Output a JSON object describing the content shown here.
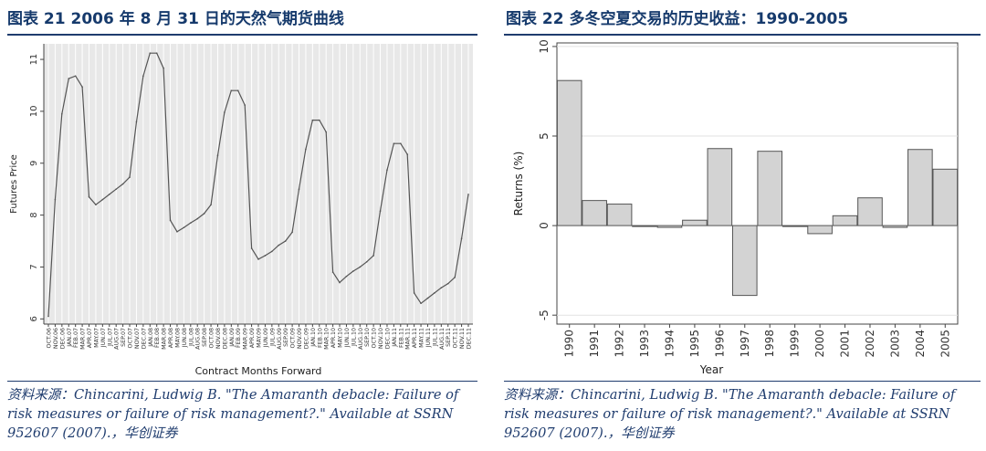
{
  "left": {
    "title": "图表 21  2006 年 8 月 31 日的天然气期货曲线",
    "source": "资料来源：Chincarini, Ludwig B. \"The Amaranth debacle: Failure of risk measures or failure of risk management?.\" Available at SSRN 952607 (2007).，华创证券"
  },
  "right": {
    "title": "图表 22  多冬空夏交易的历史收益：1990-2005",
    "source": "资料来源：Chincarini, Ludwig B. \"The Amaranth debacle: Failure of risk measures or failure of risk management?.\" Available at SSRN 952607 (2007).，华创证券"
  },
  "chart_data": [
    {
      "type": "line",
      "title": "",
      "xlabel": "Contract Months Forward",
      "ylabel": "Futures Price",
      "ylim": [
        5.9,
        11.3
      ],
      "yticks": [
        6,
        7,
        8,
        9,
        10,
        11
      ],
      "grid": "vertical",
      "colors": {
        "line": "#555555",
        "background": "#e8e8e8",
        "grid": "#ffffff"
      },
      "categories": [
        "OCT.06",
        "NOV.06",
        "DEC.06",
        "JAN.07",
        "FEB.07",
        "MAR.07",
        "APR.07",
        "MAY.07",
        "JUN.07",
        "JUL.07",
        "AUG.07",
        "SEP.07",
        "OCT.07",
        "NOV.07",
        "DEC.07",
        "JAN.08",
        "FEB.08",
        "MAR.08",
        "APR.08",
        "MAY.08",
        "JUN.08",
        "JUL.08",
        "AUG.08",
        "SEP.08",
        "OCT.08",
        "NOV.08",
        "DEC.08",
        "JAN.09",
        "FEB.09",
        "MAR.09",
        "APR.09",
        "MAY.09",
        "JUN.09",
        "JUL.09",
        "AUG.09",
        "SEP.09",
        "OCT.09",
        "NOV.09",
        "DEC.09",
        "JAN.10",
        "FEB.10",
        "MAR.10",
        "APR.10",
        "MAY.10",
        "JUN.10",
        "JUL.10",
        "AUG.10",
        "SEP.10",
        "OCT.10",
        "NOV.10",
        "DEC.10",
        "JAN.11",
        "FEB.11",
        "MAR.11",
        "APR.11",
        "MAY.11",
        "JUN.11",
        "JUL.11",
        "AUG.11",
        "SEP.11",
        "OCT.11",
        "NOV.11",
        "DEC.11"
      ],
      "series": [
        {
          "values": [
            6.05,
            8.3,
            9.95,
            10.63,
            10.68,
            10.47,
            8.35,
            8.2,
            8.3,
            8.4,
            8.5,
            8.6,
            8.73,
            9.8,
            10.68,
            11.12,
            11.12,
            10.83,
            7.9,
            7.68,
            7.76,
            7.85,
            7.93,
            8.03,
            8.2,
            9.15,
            9.98,
            10.4,
            10.4,
            10.12,
            7.36,
            7.15,
            7.22,
            7.3,
            7.42,
            7.5,
            7.67,
            8.5,
            9.27,
            9.83,
            9.83,
            9.6,
            6.9,
            6.7,
            6.82,
            6.92,
            7.0,
            7.1,
            7.22,
            8.08,
            8.87,
            9.38,
            9.38,
            9.17,
            6.5,
            6.3,
            6.4,
            6.5,
            6.6,
            6.68,
            6.8,
            7.55,
            8.4
          ]
        }
      ]
    },
    {
      "type": "bar",
      "title": "",
      "xlabel": "Year",
      "ylabel": "Returns (%)",
      "ylim": [
        -5.5,
        10.2
      ],
      "yticks": [
        -5,
        0,
        5,
        10
      ],
      "grid": "horizontal",
      "colors": {
        "bar": "#d3d3d3",
        "edge": "#555555",
        "grid": "#e2e2e2"
      },
      "categories": [
        "1990",
        "1991",
        "1992",
        "1993",
        "1994",
        "1995",
        "1996",
        "1997",
        "1998",
        "1999",
        "2000",
        "2001",
        "2002",
        "2003",
        "2004",
        "2005"
      ],
      "values": [
        8.1,
        1.4,
        1.2,
        -0.05,
        -0.1,
        0.3,
        4.3,
        -3.9,
        4.15,
        -0.05,
        -0.45,
        0.55,
        1.55,
        -0.1,
        4.25,
        3.15
      ]
    }
  ]
}
